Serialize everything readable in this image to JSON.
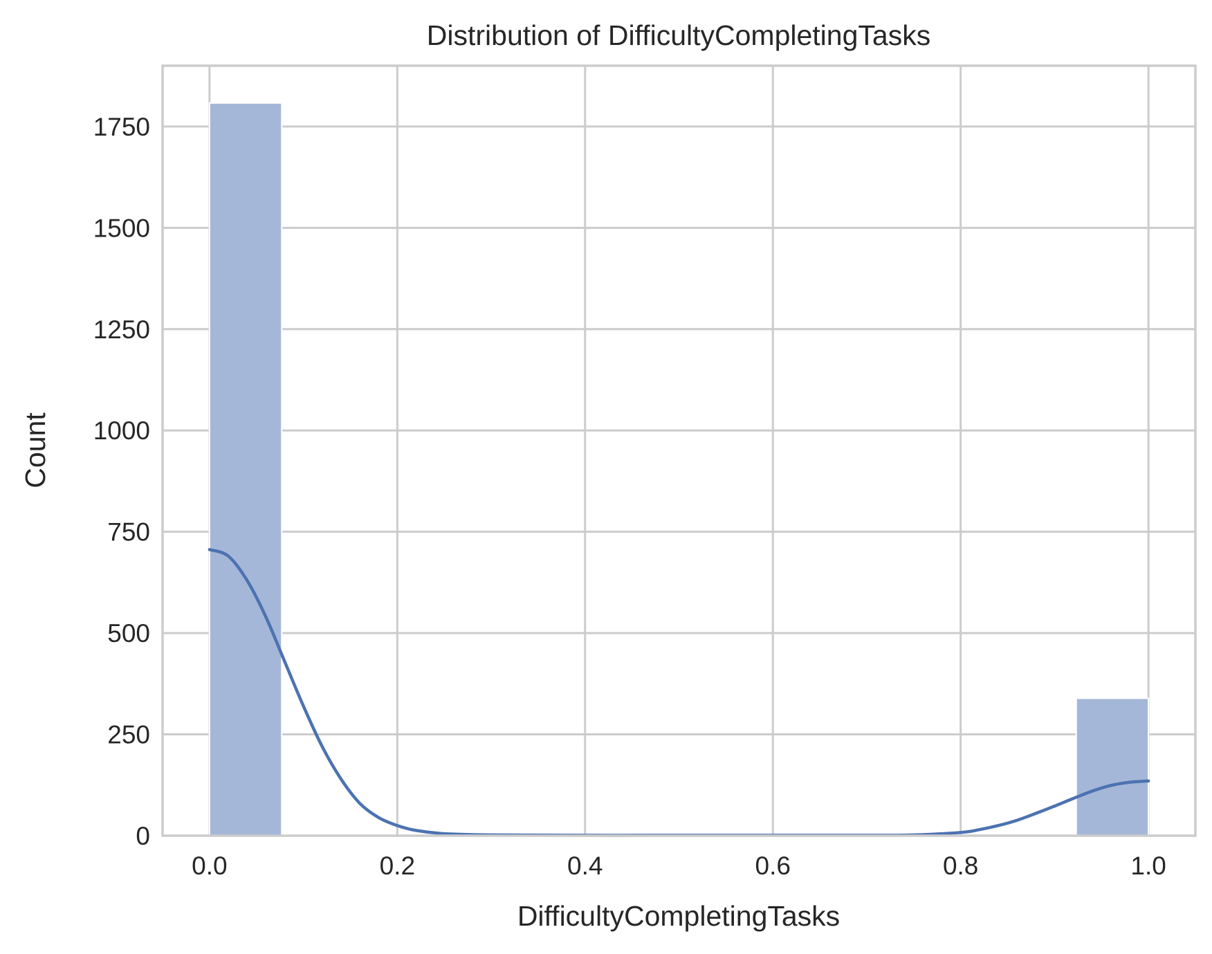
{
  "chart_data": {
    "type": "bar",
    "title": "Distribution of DifficultyCompletingTasks",
    "xlabel": "DifficultyCompletingTasks",
    "ylabel": "Count",
    "xlim": [
      -0.05,
      1.05
    ],
    "ylim": [
      0,
      1900
    ],
    "x_ticks": [
      "0.0",
      "0.2",
      "0.4",
      "0.6",
      "0.8",
      "1.0"
    ],
    "y_ticks": [
      "0",
      "250",
      "500",
      "750",
      "1000",
      "1250",
      "1500",
      "1750"
    ],
    "grid": true,
    "bins": [
      {
        "x_start": 0.0,
        "x_end": 0.0769,
        "count": 1808
      },
      {
        "x_start": 0.0769,
        "x_end": 0.1538,
        "count": 0
      },
      {
        "x_start": 0.1538,
        "x_end": 0.2308,
        "count": 0
      },
      {
        "x_start": 0.2308,
        "x_end": 0.3077,
        "count": 0
      },
      {
        "x_start": 0.3077,
        "x_end": 0.3846,
        "count": 0
      },
      {
        "x_start": 0.3846,
        "x_end": 0.4615,
        "count": 0
      },
      {
        "x_start": 0.4615,
        "x_end": 0.5385,
        "count": 0
      },
      {
        "x_start": 0.5385,
        "x_end": 0.6154,
        "count": 0
      },
      {
        "x_start": 0.6154,
        "x_end": 0.6923,
        "count": 0
      },
      {
        "x_start": 0.6923,
        "x_end": 0.7692,
        "count": 0
      },
      {
        "x_start": 0.7692,
        "x_end": 0.8462,
        "count": 0
      },
      {
        "x_start": 0.8462,
        "x_end": 0.9231,
        "count": 0
      },
      {
        "x_start": 0.9231,
        "x_end": 1.0,
        "count": 339
      }
    ],
    "kde": {
      "x": [
        0.0,
        0.02,
        0.04,
        0.06,
        0.08,
        0.1,
        0.12,
        0.14,
        0.16,
        0.18,
        0.2,
        0.22,
        0.25,
        0.3,
        0.4,
        0.5,
        0.6,
        0.7,
        0.75,
        0.8,
        0.82,
        0.84,
        0.86,
        0.88,
        0.9,
        0.92,
        0.94,
        0.96,
        0.98,
        1.0
      ],
      "y": [
        706,
        690,
        630,
        540,
        430,
        320,
        220,
        140,
        80,
        45,
        25,
        13,
        5,
        2,
        1,
        1,
        1,
        1,
        2,
        8,
        15,
        25,
        38,
        55,
        73,
        92,
        110,
        124,
        132,
        135
      ]
    },
    "colors": {
      "bar": "#a5b7d8",
      "kde": "#4c72b0",
      "grid": "#cccccc",
      "text": "#262626"
    }
  }
}
